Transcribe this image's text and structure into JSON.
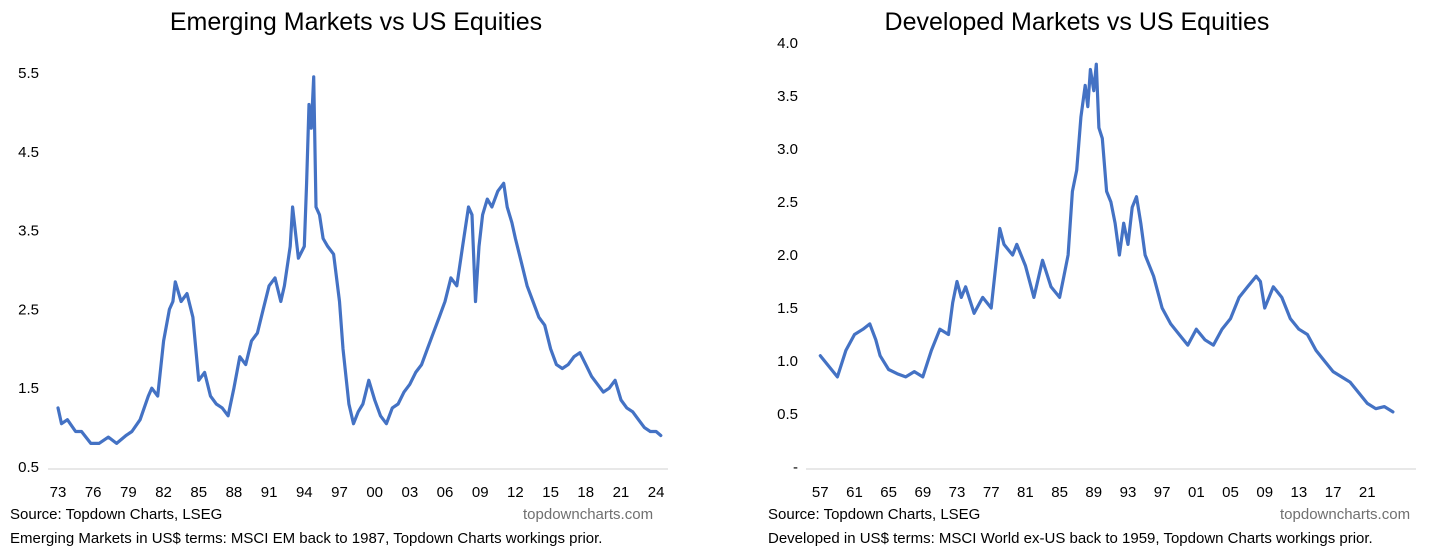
{
  "charts": [
    {
      "title": "Emerging Markets vs US Equities",
      "source": "Source: Topdown Charts, LSEG",
      "brand": "topdowncharts.com",
      "note": "Emerging Markets in US$ terms: MSCI EM back to 1987, Topdown Charts workings prior."
    },
    {
      "title": "Developed Markets vs US Equities",
      "source": "Source: Topdown Charts, LSEG",
      "brand": "topdowncharts.com",
      "note": "Developed in US$ terms: MSCI World ex-US back to 1959, Topdown Charts workings prior."
    }
  ],
  "colors": {
    "line": "#4472C4",
    "axis": "#D9D9D9",
    "brand_text": "#707070"
  },
  "chart_data": [
    {
      "type": "line",
      "title": "Emerging Markets vs US Equities",
      "xlabel": "",
      "ylabel": "",
      "grid": false,
      "legend": "none",
      "x_range": [
        1973,
        2024.5
      ],
      "ylim": [
        0.5,
        5.5
      ],
      "y_ticks": [
        0.5,
        1.5,
        2.5,
        3.5,
        4.5,
        5.5
      ],
      "y_tick_labels": [
        "0.5",
        "1.5",
        "2.5",
        "3.5",
        "4.5",
        "5.5"
      ],
      "x_ticks": [
        1973,
        1976,
        1979,
        1982,
        1985,
        1988,
        1991,
        1994,
        1997,
        2000,
        2003,
        2006,
        2009,
        2012,
        2015,
        2018,
        2021,
        2024
      ],
      "x_tick_labels": [
        "73",
        "76",
        "79",
        "82",
        "85",
        "88",
        "91",
        "94",
        "97",
        "00",
        "03",
        "06",
        "09",
        "12",
        "15",
        "18",
        "21",
        "24"
      ],
      "series": [
        {
          "x": [
            1973.0,
            1973.3,
            1973.8,
            1974.5,
            1975.0,
            1975.8,
            1976.5,
            1977.3,
            1978.0,
            1978.8,
            1979.3,
            1980.0,
            1980.7,
            1981.0,
            1981.5,
            1982.0,
            1982.5,
            1982.8,
            1983.0,
            1983.5,
            1984.0,
            1984.5,
            1985.0,
            1985.5,
            1986.0,
            1986.5,
            1987.0,
            1987.5,
            1988.0,
            1988.5,
            1989.0,
            1989.5,
            1990.0,
            1990.5,
            1991.0,
            1991.5,
            1992.0,
            1992.3,
            1992.8,
            1993.0,
            1993.5,
            1994.0,
            1994.2,
            1994.4,
            1994.6,
            1994.8,
            1995.0,
            1995.3,
            1995.6,
            1996.0,
            1996.5,
            1997.0,
            1997.3,
            1997.8,
            1998.2,
            1998.6,
            1999.0,
            1999.5,
            2000.0,
            2000.5,
            2001.0,
            2001.5,
            2002.0,
            2002.5,
            2003.0,
            2003.5,
            2004.0,
            2004.5,
            2005.0,
            2005.5,
            2006.0,
            2006.5,
            2007.0,
            2007.5,
            2008.0,
            2008.3,
            2008.6,
            2008.9,
            2009.2,
            2009.6,
            2010.0,
            2010.5,
            2011.0,
            2011.3,
            2011.7,
            2012.0,
            2012.5,
            2013.0,
            2013.5,
            2014.0,
            2014.5,
            2015.0,
            2015.5,
            2016.0,
            2016.5,
            2017.0,
            2017.5,
            2018.0,
            2018.5,
            2019.0,
            2019.5,
            2020.0,
            2020.5,
            2021.0,
            2021.5,
            2022.0,
            2022.5,
            2023.0,
            2023.5,
            2024.0,
            2024.4
          ],
          "values": [
            1.25,
            1.05,
            1.1,
            0.95,
            0.95,
            0.8,
            0.8,
            0.88,
            0.8,
            0.9,
            0.95,
            1.1,
            1.4,
            1.5,
            1.4,
            2.1,
            2.5,
            2.6,
            2.85,
            2.6,
            2.7,
            2.4,
            1.6,
            1.7,
            1.4,
            1.3,
            1.25,
            1.15,
            1.5,
            1.9,
            1.8,
            2.1,
            2.2,
            2.5,
            2.8,
            2.9,
            2.6,
            2.8,
            3.3,
            3.8,
            3.15,
            3.3,
            4.1,
            5.1,
            4.8,
            5.45,
            3.8,
            3.7,
            3.4,
            3.3,
            3.2,
            2.6,
            2.0,
            1.3,
            1.05,
            1.2,
            1.3,
            1.6,
            1.35,
            1.15,
            1.05,
            1.25,
            1.3,
            1.45,
            1.55,
            1.7,
            1.8,
            2.0,
            2.2,
            2.4,
            2.6,
            2.9,
            2.8,
            3.3,
            3.8,
            3.7,
            2.6,
            3.3,
            3.7,
            3.9,
            3.8,
            4.0,
            4.1,
            3.8,
            3.6,
            3.4,
            3.1,
            2.8,
            2.6,
            2.4,
            2.3,
            2.0,
            1.8,
            1.75,
            1.8,
            1.9,
            1.95,
            1.8,
            1.65,
            1.55,
            1.45,
            1.5,
            1.6,
            1.35,
            1.25,
            1.2,
            1.1,
            1.0,
            0.95,
            0.95,
            0.9
          ]
        }
      ]
    },
    {
      "type": "line",
      "title": "Developed Markets vs US Equities",
      "xlabel": "",
      "ylabel": "",
      "grid": false,
      "legend": "none",
      "x_range": [
        1956.5,
        2026
      ],
      "ylim": [
        0,
        4.0
      ],
      "y_ticks": [
        0,
        0.5,
        1.0,
        1.5,
        2.0,
        2.5,
        3.0,
        3.5,
        4.0
      ],
      "y_tick_labels": [
        "-",
        "0.5",
        "1.0",
        "1.5",
        "2.0",
        "2.5",
        "3.0",
        "3.5",
        "4.0"
      ],
      "x_ticks": [
        1957,
        1961,
        1965,
        1969,
        1973,
        1977,
        1981,
        1985,
        1989,
        1993,
        1997,
        2001,
        2005,
        2009,
        2013,
        2017,
        2021
      ],
      "x_tick_labels": [
        "57",
        "61",
        "65",
        "69",
        "73",
        "77",
        "81",
        "85",
        "89",
        "93",
        "97",
        "01",
        "05",
        "09",
        "13",
        "17",
        "21"
      ],
      "series": [
        {
          "x": [
            1957.0,
            1958.0,
            1959.0,
            1960.0,
            1961.0,
            1962.0,
            1962.8,
            1963.5,
            1964.0,
            1965.0,
            1966.0,
            1967.0,
            1968.0,
            1969.0,
            1970.0,
            1971.0,
            1972.0,
            1972.5,
            1973.0,
            1973.5,
            1974.0,
            1975.0,
            1976.0,
            1977.0,
            1978.0,
            1978.5,
            1979.0,
            1979.5,
            1980.0,
            1981.0,
            1982.0,
            1983.0,
            1984.0,
            1985.0,
            1985.5,
            1986.0,
            1986.5,
            1987.0,
            1987.5,
            1988.0,
            1988.3,
            1988.6,
            1989.0,
            1989.3,
            1989.6,
            1990.0,
            1990.5,
            1991.0,
            1991.5,
            1992.0,
            1992.5,
            1993.0,
            1993.5,
            1994.0,
            1994.5,
            1995.0,
            1996.0,
            1997.0,
            1998.0,
            1999.0,
            2000.0,
            2001.0,
            2002.0,
            2003.0,
            2004.0,
            2005.0,
            2006.0,
            2007.0,
            2008.0,
            2008.5,
            2009.0,
            2010.0,
            2011.0,
            2012.0,
            2013.0,
            2014.0,
            2015.0,
            2016.0,
            2017.0,
            2018.0,
            2019.0,
            2020.0,
            2021.0,
            2022.0,
            2023.0,
            2024.0
          ],
          "values": [
            1.05,
            0.95,
            0.85,
            1.1,
            1.25,
            1.3,
            1.35,
            1.2,
            1.05,
            0.92,
            0.88,
            0.85,
            0.9,
            0.85,
            1.1,
            1.3,
            1.25,
            1.55,
            1.75,
            1.6,
            1.7,
            1.45,
            1.6,
            1.5,
            2.25,
            2.1,
            2.05,
            2.0,
            2.1,
            1.9,
            1.6,
            1.95,
            1.7,
            1.6,
            1.8,
            2.0,
            2.6,
            2.8,
            3.3,
            3.6,
            3.4,
            3.75,
            3.55,
            3.8,
            3.2,
            3.1,
            2.6,
            2.5,
            2.3,
            2.0,
            2.3,
            2.1,
            2.45,
            2.55,
            2.3,
            2.0,
            1.8,
            1.5,
            1.35,
            1.25,
            1.15,
            1.3,
            1.2,
            1.15,
            1.3,
            1.4,
            1.6,
            1.7,
            1.8,
            1.75,
            1.5,
            1.7,
            1.6,
            1.4,
            1.3,
            1.25,
            1.1,
            1.0,
            0.9,
            0.85,
            0.8,
            0.7,
            0.6,
            0.55,
            0.57,
            0.52
          ]
        }
      ]
    }
  ]
}
